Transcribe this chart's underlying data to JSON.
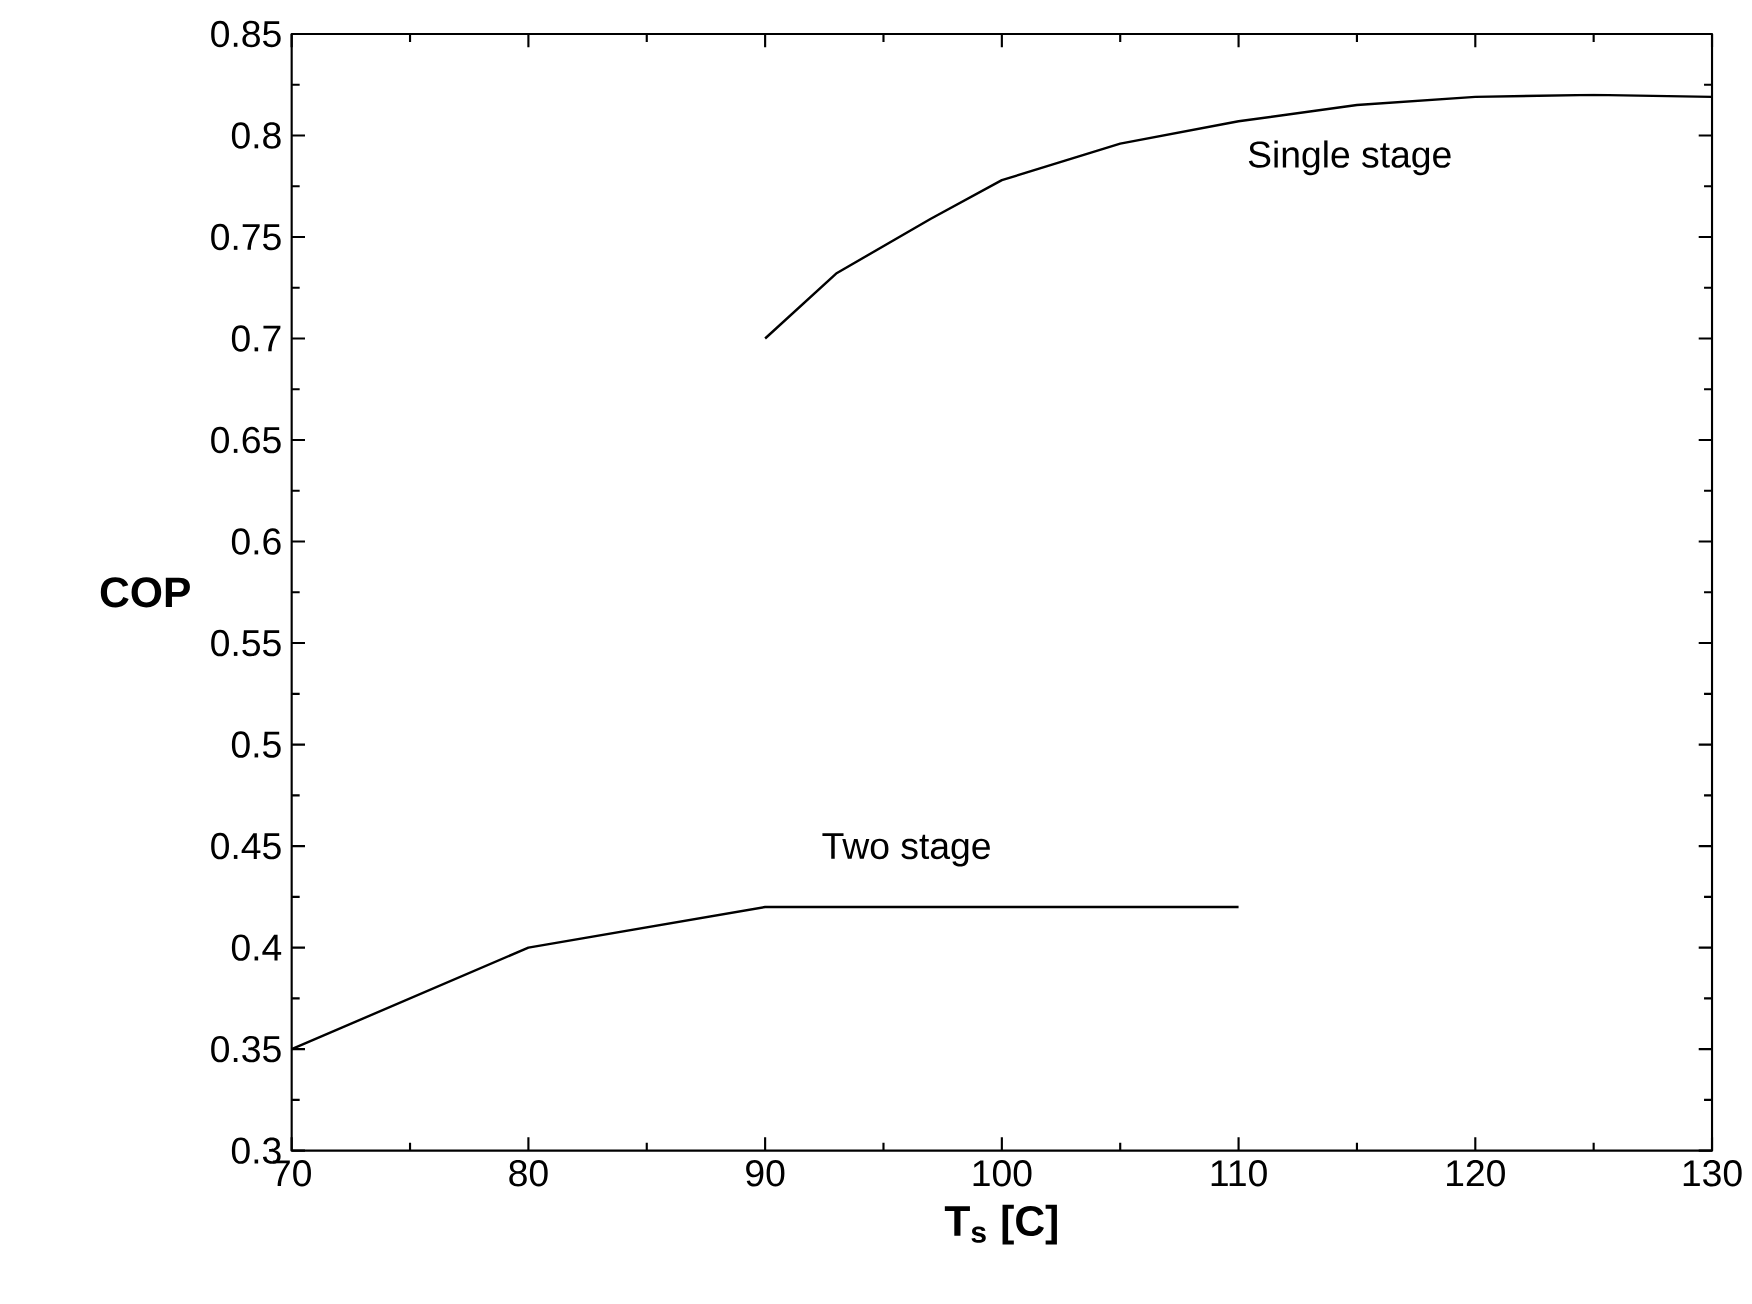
{
  "chart_data": {
    "type": "line",
    "xlabel": "T$_{s}$  [C]",
    "ylabel": "COP",
    "xlim": [
      70,
      130
    ],
    "xticks": [
      70,
      80,
      90,
      100,
      110,
      120,
      130
    ],
    "ylim": [
      0.3,
      0.85
    ],
    "yticks": [
      0.3,
      0.35,
      0.4,
      0.45,
      0.5,
      0.55,
      0.6,
      0.65,
      0.7,
      0.75,
      0.8,
      0.85
    ],
    "grid": false,
    "marker": "none",
    "line_style": "solid",
    "series": [
      {
        "name": "Single stage",
        "color": "#000000",
        "x": [
          90,
          93,
          97,
          100,
          105,
          110,
          115,
          120,
          125,
          130
        ],
        "values": [
          0.7,
          0.732,
          0.759,
          0.778,
          0.796,
          0.807,
          0.815,
          0.819,
          0.82,
          0.819
        ]
      },
      {
        "name": "Two stage",
        "color": "#000000",
        "x": [
          70,
          80,
          90,
          110
        ],
        "values": [
          0.35,
          0.4,
          0.42,
          0.42
        ]
      }
    ]
  }
}
